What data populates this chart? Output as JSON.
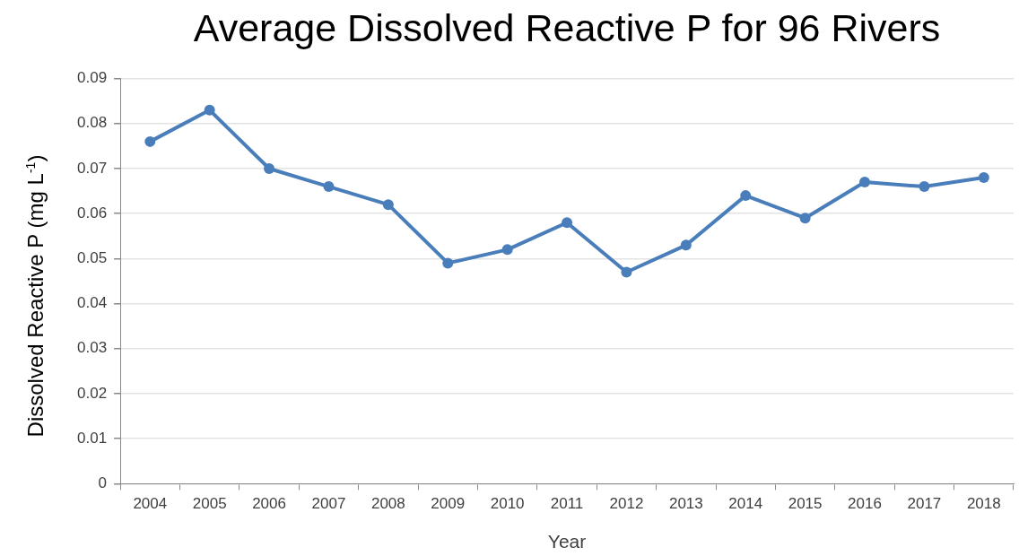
{
  "chart_data": {
    "type": "line",
    "title": "Average Dissolved Reactive P for 96 Rivers",
    "xlabel": "Year",
    "ylabel": "Dissolved Reactive P (mg L$^{-1}$)",
    "categories": [
      "2004",
      "2005",
      "2006",
      "2007",
      "2008",
      "2009",
      "2010",
      "2011",
      "2012",
      "2013",
      "2014",
      "2015",
      "2016",
      "2017",
      "2018"
    ],
    "values": [
      0.076,
      0.083,
      0.07,
      0.066,
      0.062,
      0.049,
      0.052,
      0.058,
      0.047,
      0.053,
      0.064,
      0.059,
      0.067,
      0.066,
      0.068
    ],
    "color": "#4a7ebb",
    "ylim": [
      0,
      0.09
    ],
    "yticks": [
      0,
      0.01,
      0.02,
      0.03,
      0.04,
      0.05,
      0.06,
      0.07,
      0.08,
      0.09
    ],
    "grid": "y",
    "marker": "circle",
    "line_style": "solid"
  }
}
